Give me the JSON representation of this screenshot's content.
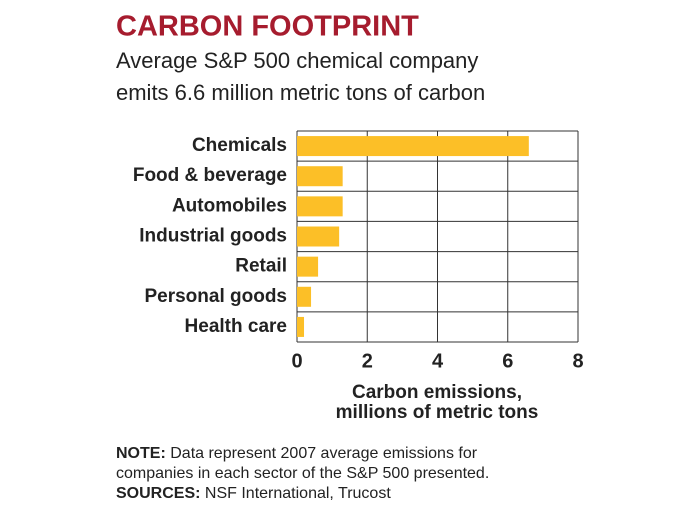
{
  "chart_data": {
    "type": "bar",
    "orientation": "horizontal",
    "title": "CARBON FOOTPRINT",
    "subtitle": [
      "Average S&P 500 chemical company",
      "emits 6.6 million metric tons of carbon"
    ],
    "categories": [
      "Chemicals",
      "Food & beverage",
      "Automobiles",
      "Industrial goods",
      "Retail",
      "Personal goods",
      "Health care"
    ],
    "values": [
      6.6,
      1.3,
      1.3,
      1.2,
      0.6,
      0.4,
      0.2
    ],
    "color": "#fcbf27",
    "xlim": [
      0,
      8
    ],
    "xticks": [
      0,
      2,
      4,
      6,
      8
    ],
    "grid": true,
    "xlabel": [
      "Carbon emissions,",
      "millions of metric tons"
    ]
  },
  "footer": {
    "note": {
      "label": "NOTE:",
      "text": [
        "Data represent 2007 average emissions for",
        "companies in each sector of the S&P 500 presented."
      ]
    },
    "sources": {
      "label": "SOURCES:",
      "text": "NSF International, Trucost"
    }
  }
}
